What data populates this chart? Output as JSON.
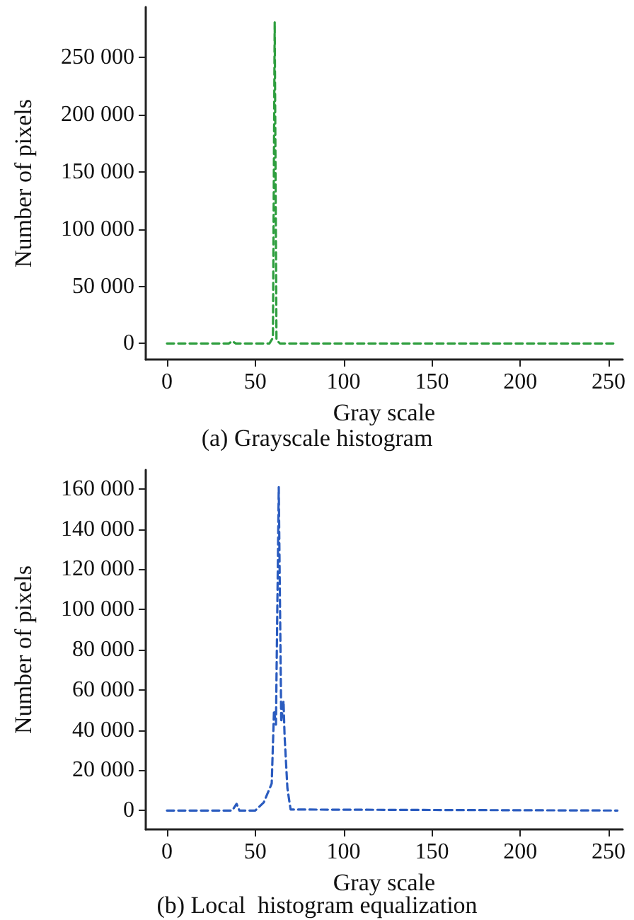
{
  "chart_data": [
    {
      "type": "line",
      "title": "(a) Grayscale histogram",
      "xlabel": "Gray scale",
      "ylabel": "Number of pixels",
      "xlim": [
        -12,
        258
      ],
      "xticks": [
        0,
        50,
        100,
        150,
        200,
        250
      ],
      "ylim": [
        -14000,
        294000
      ],
      "yticks": [
        0,
        {
          "value": 50000,
          "label": "50 000"
        },
        {
          "value": 100000,
          "label": "100 000"
        },
        {
          "value": 150000,
          "label": "150 000"
        },
        {
          "value": 200000,
          "label": "200 000"
        },
        {
          "value": 250000,
          "label": "250 000"
        }
      ],
      "grid": false,
      "marker": "none",
      "line_style": "dashed",
      "series": [
        {
          "color": "#2e9e3e",
          "x": [
            0,
            35,
            37,
            39,
            58,
            60,
            61,
            62,
            64,
            255
          ],
          "values": [
            0,
            0,
            2000,
            0,
            0,
            5000,
            281000,
            3000,
            0,
            0
          ]
        }
      ]
    },
    {
      "type": "line",
      "title": "(b) Local  histogram equalization",
      "xlabel": "Gray scale",
      "ylabel": "Number of pixels",
      "xlim": [
        -12,
        258
      ],
      "xticks": [
        0,
        50,
        100,
        150,
        200,
        250
      ],
      "ylim": [
        -9400,
        169400
      ],
      "yticks": [
        0,
        {
          "value": 20000,
          "label": "20 000"
        },
        {
          "value": 40000,
          "label": "40 000"
        },
        {
          "value": 60000,
          "label": "60 000"
        },
        {
          "value": 80000,
          "label": "80 000"
        },
        {
          "value": 100000,
          "label": "100 000"
        },
        {
          "value": 120000,
          "label": "120 000"
        },
        {
          "value": 140000,
          "label": "140 000"
        },
        {
          "value": 160000,
          "label": "160 000"
        }
      ],
      "grid": false,
      "marker": "none",
      "line_style": "dashed",
      "series": [
        {
          "color": "#2a5bbf",
          "x": [
            0,
            37,
            39.4,
            41,
            50,
            54.8,
            59.3,
            60.6,
            61.7,
            63.3,
            64.7,
            66,
            66.6,
            68.2,
            70,
            255
          ],
          "values": [
            0,
            0,
            3300,
            0,
            0,
            4000,
            13400,
            49800,
            42700,
            160800,
            43900,
            54500,
            37000,
            11000,
            500,
            0
          ]
        }
      ]
    }
  ]
}
